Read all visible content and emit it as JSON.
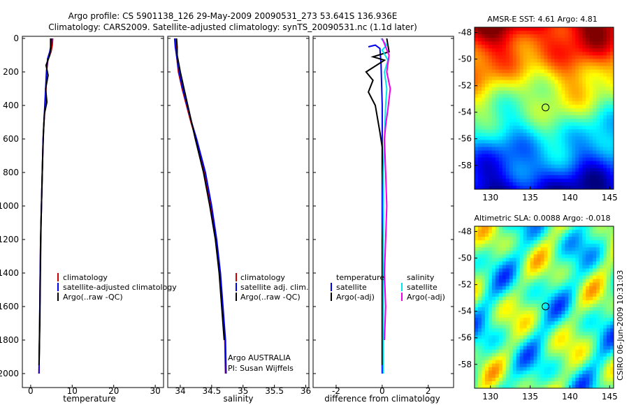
{
  "title_line1": "Argo profile: CS 5901138_126 29-May-2009 20090531_273 53.641S 136.936E",
  "title_line2": "Climatology: CARS2009. Satellite-adjusted climatology: synTS_20090531.nc (1.1d later)",
  "colors": {
    "climatology": "#cc0000",
    "satellite": "#0000ee",
    "argo": "#000000",
    "cyan": "#00e5ee",
    "magenta": "#ee00ee"
  },
  "depth_ticks": [
    "0",
    "200",
    "400",
    "600",
    "800",
    "1000",
    "1200",
    "1400",
    "1600",
    "1800",
    "2000"
  ],
  "temperature_panel": {
    "xlabel": "temperature",
    "xticks": [
      "0",
      "10",
      "20",
      "30"
    ],
    "xlim": [
      -2,
      32
    ],
    "legend": [
      "climatology",
      "satellite-adjusted climatology",
      "Argo(..raw -QC)"
    ]
  },
  "salinity_panel": {
    "xlabel": "salinity",
    "xticks": [
      "34",
      "34.5",
      "35",
      "35.5",
      "36"
    ],
    "xlim": [
      33.8,
      36.05
    ],
    "legend": [
      "climatology",
      "satellite adj. clim.",
      "Argo(..raw -QC)"
    ],
    "annotation_line1": "Argo AUSTRALIA",
    "annotation_line2": "PI: Susan Wijffels"
  },
  "difference_panel": {
    "xlabel": "difference from climatology",
    "xticks": [
      "-2",
      "0",
      "2"
    ],
    "xlim": [
      -3,
      3.1
    ],
    "legend_temperature_header": "temperature",
    "legend_temperature": [
      "satellite",
      "Argo(-adj)"
    ],
    "legend_salinity_header": "salinity",
    "legend_salinity": [
      "satellite",
      "Argo(-adj)"
    ]
  },
  "sst_map": {
    "title": "AMSR-E SST: 4.61 Argo: 4.81",
    "xticks": [
      "130",
      "135",
      "140",
      "145"
    ],
    "yticks": [
      "-48",
      "-50",
      "-52",
      "-54",
      "-56",
      "-58"
    ],
    "xlim": [
      128,
      145.5
    ],
    "ylim": [
      -59.8,
      -47.6
    ],
    "profile_lon": 136.936,
    "profile_lat": -53.641
  },
  "sla_map": {
    "title": "Altimetric SLA: 0.0088 Argo: -0.018",
    "xticks": [
      "130",
      "135",
      "140",
      "145"
    ],
    "yticks": [
      "-48",
      "-50",
      "-52",
      "-54",
      "-56",
      "-58"
    ],
    "xlim": [
      128,
      145.5
    ],
    "ylim": [
      -59.8,
      -47.6
    ],
    "profile_lon": 136.936,
    "profile_lat": -53.641
  },
  "watermark": "CSIRO 06-Jun-2009 10:31:03",
  "chart_data": [
    {
      "type": "line",
      "xlabel": "temperature",
      "ylabel": "",
      "xlim": [
        -2,
        32
      ],
      "ylim": [
        0,
        2050
      ],
      "series": [
        {
          "name": "climatology",
          "points": [
            [
              5.3,
              0
            ],
            [
              5.2,
              40
            ],
            [
              4.9,
              80
            ],
            [
              4.2,
              120
            ],
            [
              3.8,
              200
            ],
            [
              3.7,
              300
            ],
            [
              3.5,
              400
            ],
            [
              3.2,
              500
            ],
            [
              3.0,
              600
            ],
            [
              2.8,
              800
            ],
            [
              2.6,
              1000
            ],
            [
              2.4,
              1200
            ],
            [
              2.3,
              1400
            ],
            [
              2.2,
              1600
            ],
            [
              2.1,
              1800
            ],
            [
              2.0,
              2000
            ]
          ]
        },
        {
          "name": "satellite-adjusted climatology",
          "points": [
            [
              5.0,
              0
            ],
            [
              4.9,
              40
            ],
            [
              4.6,
              80
            ],
            [
              4.1,
              120
            ],
            [
              3.8,
              200
            ],
            [
              3.6,
              300
            ],
            [
              3.4,
              400
            ],
            [
              3.2,
              500
            ],
            [
              3.0,
              600
            ],
            [
              2.8,
              800
            ],
            [
              2.6,
              1000
            ],
            [
              2.4,
              1200
            ],
            [
              2.3,
              1400
            ],
            [
              2.2,
              1600
            ],
            [
              2.1,
              1800
            ],
            [
              2.0,
              2000
            ]
          ]
        },
        {
          "name": "Argo(..raw -QC)",
          "points": [
            [
              4.8,
              0
            ],
            [
              4.8,
              60
            ],
            [
              4.6,
              100
            ],
            [
              3.7,
              160
            ],
            [
              4.2,
              220
            ],
            [
              3.6,
              300
            ],
            [
              3.9,
              380
            ],
            [
              3.3,
              450
            ],
            [
              3.1,
              550
            ],
            [
              2.9,
              700
            ],
            [
              2.7,
              900
            ],
            [
              2.5,
              1100
            ],
            [
              2.4,
              1300
            ],
            [
              2.3,
              1500
            ],
            [
              2.2,
              1700
            ],
            [
              2.0,
              1950
            ]
          ]
        }
      ]
    },
    {
      "type": "line",
      "xlabel": "salinity",
      "ylabel": "",
      "xlim": [
        33.8,
        36.05
      ],
      "ylim": [
        0,
        2050
      ],
      "series": [
        {
          "name": "climatology",
          "points": [
            [
              33.92,
              0
            ],
            [
              33.93,
              50
            ],
            [
              33.94,
              100
            ],
            [
              33.97,
              200
            ],
            [
              34.03,
              300
            ],
            [
              34.1,
              400
            ],
            [
              34.17,
              500
            ],
            [
              34.25,
              600
            ],
            [
              34.38,
              800
            ],
            [
              34.48,
              1000
            ],
            [
              34.57,
              1200
            ],
            [
              34.63,
              1400
            ],
            [
              34.67,
              1600
            ],
            [
              34.71,
              1800
            ],
            [
              34.72,
              2000
            ]
          ]
        },
        {
          "name": "satellite adj. clim.",
          "points": [
            [
              33.91,
              0
            ],
            [
              33.92,
              50
            ],
            [
              33.94,
              100
            ],
            [
              33.98,
              200
            ],
            [
              34.04,
              300
            ],
            [
              34.11,
              400
            ],
            [
              34.18,
              500
            ],
            [
              34.26,
              600
            ],
            [
              34.4,
              800
            ],
            [
              34.5,
              1000
            ],
            [
              34.58,
              1200
            ],
            [
              34.64,
              1400
            ],
            [
              34.68,
              1600
            ],
            [
              34.72,
              1800
            ],
            [
              34.73,
              2000
            ]
          ]
        },
        {
          "name": "Argo(..raw -QC)",
          "points": [
            [
              33.94,
              0
            ],
            [
              33.95,
              50
            ],
            [
              33.95,
              100
            ],
            [
              34.0,
              200
            ],
            [
              34.06,
              300
            ],
            [
              34.12,
              400
            ],
            [
              34.18,
              500
            ],
            [
              34.24,
              600
            ],
            [
              34.37,
              800
            ],
            [
              34.47,
              1000
            ],
            [
              34.56,
              1200
            ],
            [
              34.62,
              1400
            ],
            [
              34.66,
              1600
            ],
            [
              34.7,
              1800
            ]
          ]
        }
      ]
    },
    {
      "type": "line",
      "xlabel": "difference from climatology",
      "ylabel": "",
      "xlim": [
        -3,
        3.1
      ],
      "ylim": [
        0,
        2050
      ],
      "series": [
        {
          "name": "satellite",
          "points": [
            [
              -0.6,
              50
            ],
            [
              -0.3,
              40
            ],
            [
              -0.1,
              60
            ],
            [
              -0.05,
              150
            ],
            [
              0.0,
              400
            ],
            [
              0.0,
              600
            ],
            [
              0.0,
              900
            ],
            [
              0.0,
              1200
            ],
            [
              0.0,
              1500
            ],
            [
              0.0,
              1800
            ],
            [
              0.0,
              2000
            ]
          ]
        },
        {
          "name": "Argo(-adj)",
          "points": [
            [
              0.2,
              0
            ],
            [
              0.3,
              80
            ],
            [
              -0.4,
              110
            ],
            [
              0.1,
              130
            ],
            [
              -0.7,
              200
            ],
            [
              -0.4,
              250
            ],
            [
              -0.6,
              320
            ],
            [
              -0.3,
              400
            ],
            [
              -0.2,
              480
            ],
            [
              -0.1,
              560
            ],
            [
              0.0,
              650
            ],
            [
              0.0,
              800
            ],
            [
              0.05,
              1000
            ],
            [
              0.0,
              1200
            ],
            [
              0.0,
              1400
            ],
            [
              0.0,
              1600
            ],
            [
              0.0,
              1800
            ],
            [
              0.0,
              1950
            ]
          ]
        },
        {
          "name": "satellite",
          "points": [
            [
              -0.05,
              0
            ],
            [
              0.2,
              40
            ],
            [
              0.0,
              70
            ],
            [
              0.25,
              130
            ],
            [
              0.1,
              200
            ],
            [
              0.2,
              300
            ],
            [
              0.15,
              400
            ],
            [
              0.1,
              600
            ],
            [
              0.05,
              800
            ],
            [
              0.05,
              1000
            ],
            [
              0.05,
              1200
            ],
            [
              0.05,
              1400
            ],
            [
              0.05,
              1600
            ],
            [
              0.05,
              1800
            ],
            [
              0.05,
              2000
            ]
          ]
        },
        {
          "name": "Argo(-adj)",
          "points": [
            [
              0.0,
              0
            ],
            [
              0.3,
              100
            ],
            [
              0.2,
              200
            ],
            [
              0.35,
              300
            ],
            [
              0.25,
              420
            ],
            [
              0.15,
              520
            ],
            [
              0.1,
              600
            ],
            [
              0.15,
              800
            ],
            [
              0.2,
              1000
            ],
            [
              0.15,
              1200
            ],
            [
              0.1,
              1400
            ],
            [
              0.15,
              1600
            ],
            [
              0.1,
              1800
            ]
          ]
        }
      ]
    }
  ]
}
